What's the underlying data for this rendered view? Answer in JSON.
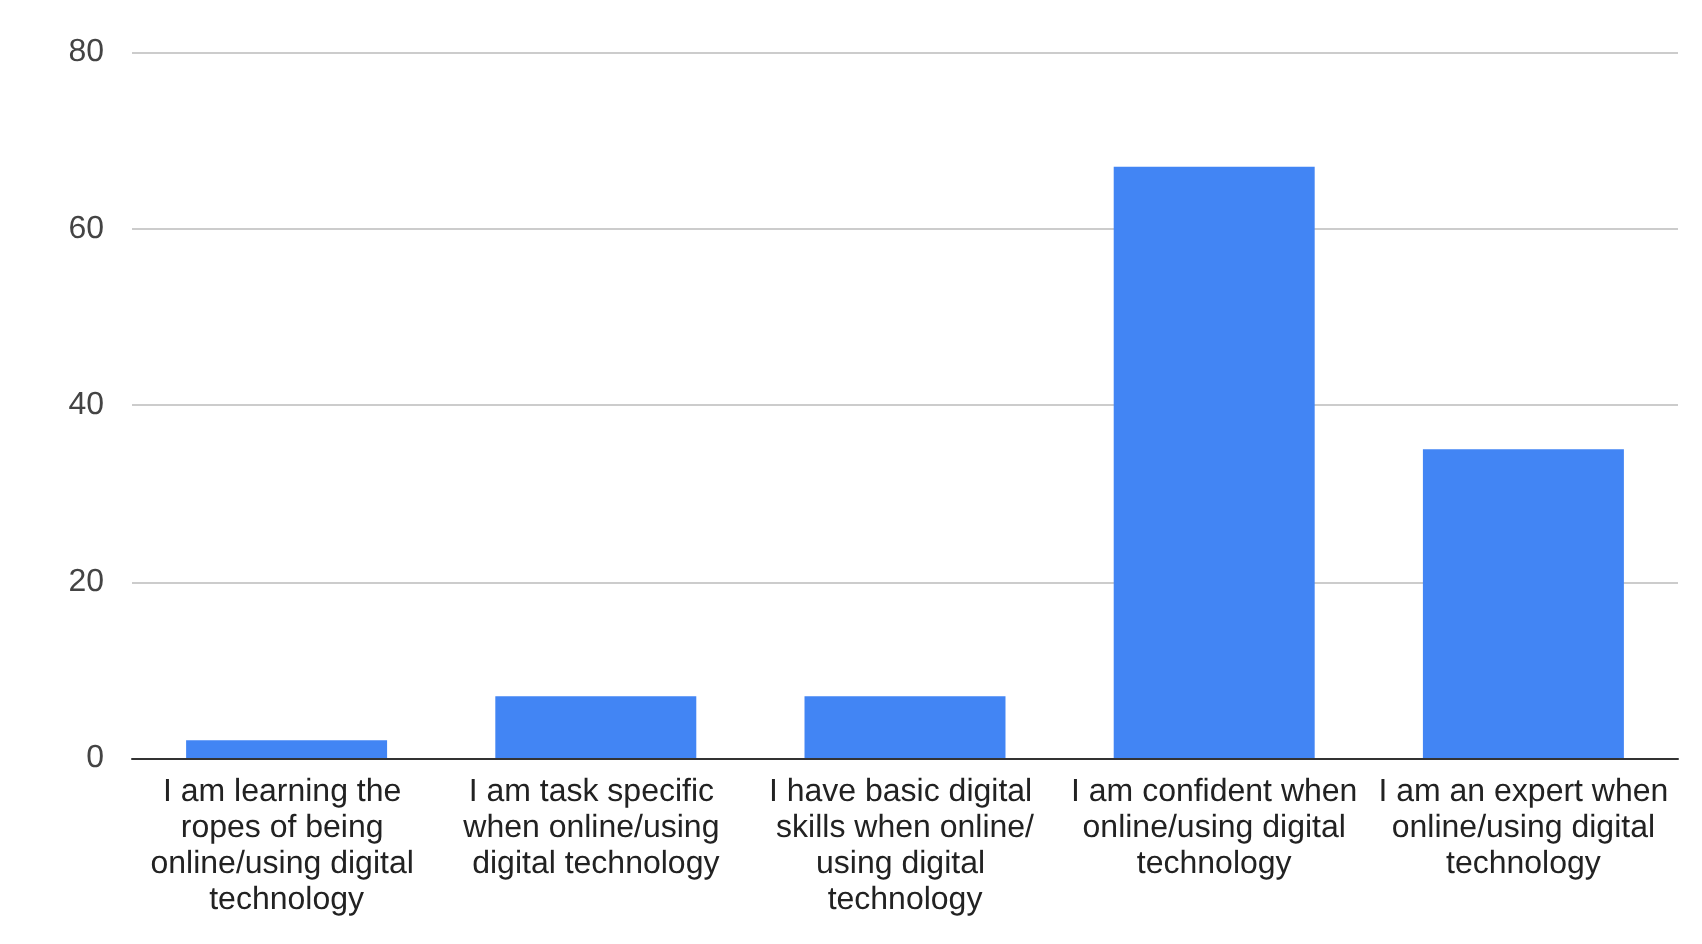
{
  "chart_data": {
    "type": "bar",
    "categories": [
      "I am learning the ropes of being online/using digital technology",
      "I am task specific when online/using digital technology",
      "I have basic digital skills when online/using digital technology",
      "I am confident when online/using digital technology",
      "I am an expert when online/using digital technology"
    ],
    "values": [
      2,
      7,
      7,
      67,
      35
    ],
    "color": "#4285f4",
    "ylim": [
      0,
      80
    ],
    "yticks": [
      0,
      20,
      40,
      60,
      80
    ],
    "grid": true
  }
}
